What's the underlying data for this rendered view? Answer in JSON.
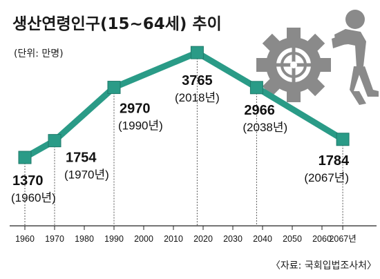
{
  "title": "생산연령인구(15~64세) 추이",
  "unit_label": "(단위: 만명)",
  "source": "〈자료: 국회입법조사처〉",
  "colors": {
    "line": "#2a9b87",
    "marker": "#2a9b87",
    "marker_stroke": "#1f7a6a",
    "gear": "#8a8a8a",
    "figure": "#8a8a8a"
  },
  "icons": [
    "gear-icon",
    "person-pushing-icon"
  ],
  "chart_data": {
    "type": "line",
    "title": "생산연령인구(15~64세) 추이",
    "ylabel": "(단위: 만명)",
    "xlabel": "",
    "x_ticks": [
      "1960",
      "1970",
      "1980",
      "1990",
      "2000",
      "2010",
      "2020",
      "2030",
      "2040",
      "2050",
      "2060",
      "2067년"
    ],
    "series": [
      {
        "points": [
          {
            "x": 1960,
            "y": 1370,
            "value_label": "1370",
            "year_label": "(1960년)"
          },
          {
            "x": 1970,
            "y": 1754,
            "value_label": "1754",
            "year_label": "(1970년)"
          },
          {
            "x": 1990,
            "y": 2970,
            "value_label": "2970",
            "year_label": "(1990년)"
          },
          {
            "x": 2018,
            "y": 3765,
            "value_label": "3765",
            "year_label": "(2018년)"
          },
          {
            "x": 2038,
            "y": 2966,
            "value_label": "2966",
            "year_label": "(2038년)"
          },
          {
            "x": 2067,
            "y": 1784,
            "value_label": "1784",
            "year_label": "(2067년)"
          }
        ]
      }
    ],
    "grid": false,
    "legend": "none"
  }
}
